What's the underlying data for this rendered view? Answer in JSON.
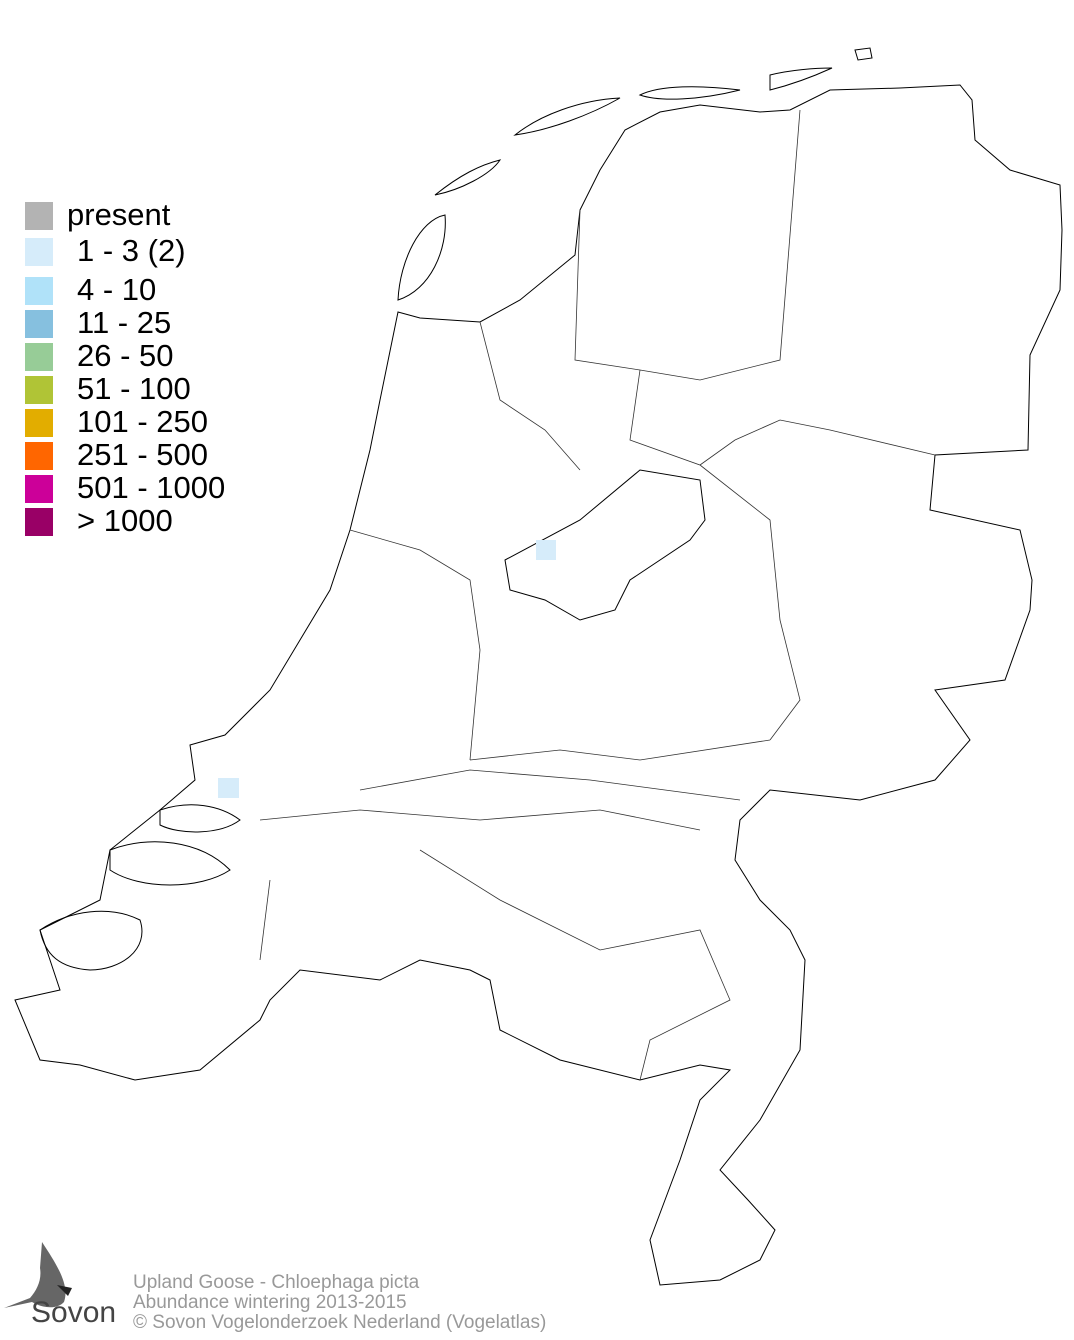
{
  "legend": {
    "items": [
      {
        "label": "present",
        "color": "#b3b3b3"
      },
      {
        "label": "1 - 3 (2)",
        "color": "#d6ecfa"
      },
      {
        "label": "4 - 10",
        "color": "#b0e2f9"
      },
      {
        "label": "11 - 25",
        "color": "#86c0df"
      },
      {
        "label": "26 - 50",
        "color": "#97cc97"
      },
      {
        "label": "51 - 100",
        "color": "#b0c436"
      },
      {
        "label": "101 - 250",
        "color": "#e2ad00"
      },
      {
        "label": "251 - 500",
        "color": "#ff6600"
      },
      {
        "label": "501 - 1000",
        "color": "#cc0099"
      },
      {
        "label": "> 1000",
        "color": "#990066"
      }
    ]
  },
  "map": {
    "occupied_cells_class": "1 - 3 (2)",
    "occupied_cells_color": "#d6ecfa"
  },
  "footer": {
    "species": "Upland Goose - Chloephaga picta",
    "subtitle": "Abundance wintering 2013-2015",
    "copyright": "© Sovon Vogelonderzoek Nederland (Vogelatlas)"
  },
  "logo": {
    "text": "Sovon"
  }
}
